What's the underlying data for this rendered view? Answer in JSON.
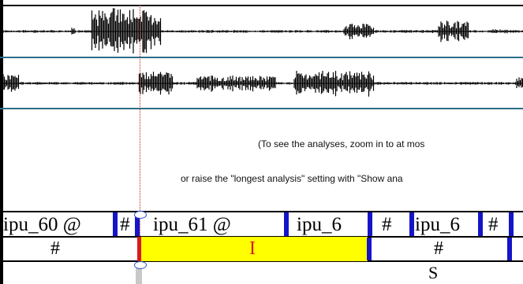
{
  "info": {
    "line1": "(To see the analyses, zoom in to at mos",
    "line2": "or raise the \"longest analysis\" setting with \"Show ana"
  },
  "tier1": {
    "intervals": [
      {
        "label": "ipu_60 @"
      },
      {
        "label": "#"
      },
      {
        "label": "ipu_61 @"
      },
      {
        "label": "ipu_6"
      },
      {
        "label": "#"
      },
      {
        "label": "ipu_6"
      },
      {
        "label": "#"
      }
    ]
  },
  "tier2": {
    "intervals": [
      {
        "label": "#"
      },
      {
        "label": "I"
      },
      {
        "label": "#"
      }
    ]
  },
  "tier3": {
    "intervals": [
      {
        "label": "S"
      }
    ]
  },
  "colors": {
    "boundary": "#1515c8",
    "selection": "#ffff00",
    "cursor": "#c41d1d",
    "selected_label": "#d81b1b",
    "channel_divider": "#2a6f87"
  }
}
